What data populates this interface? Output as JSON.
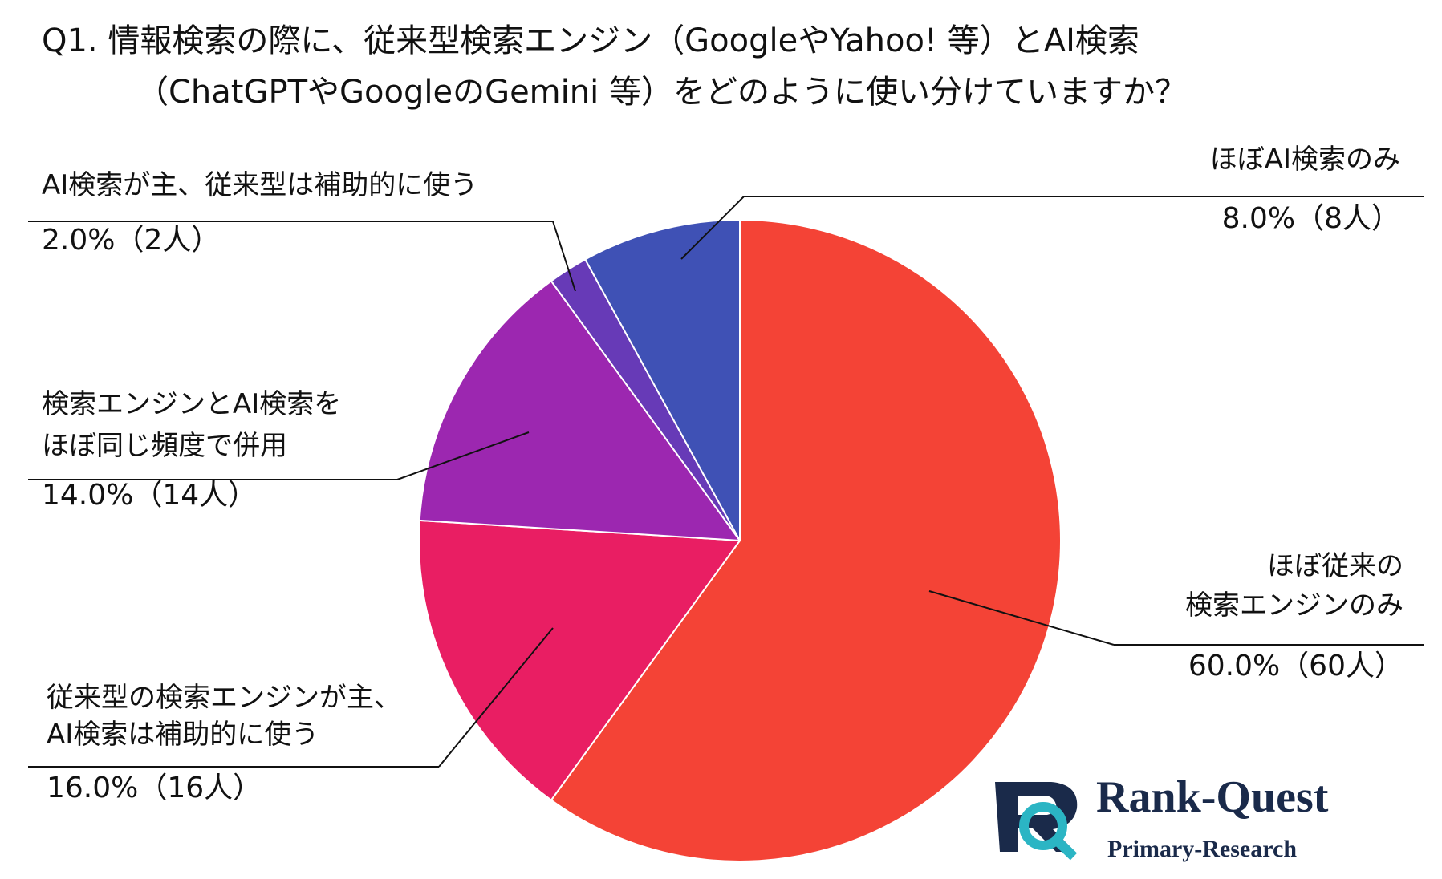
{
  "chart_data": {
    "type": "pie",
    "title": [
      "Q1. 情報検索の際に、従来型検索エンジン（GoogleやYahoo! 等）とAI検索",
      "（ChatGPTやGoogleのGemini 等）をどのように使い分けていますか？"
    ],
    "categories": [
      [
        "ほぼ従来の",
        "検索エンジンのみ"
      ],
      [
        "従来型の検索エンジンが主、",
        "AI検索は補助的に使う"
      ],
      [
        "検索エンジンとAI検索を",
        "ほぼ同じ頻度で併用"
      ],
      [
        "AI検索が主、従来型は補助的に使う"
      ],
      [
        "ほぼAI検索のみ"
      ]
    ],
    "values": [
      60,
      16,
      14,
      2,
      8
    ],
    "value_labels": [
      "60.0%（60人）",
      "16.0%（16人）",
      "14.0%（14人）",
      "2.0%（2人）",
      "8.0%（8人）"
    ],
    "colors": [
      "#f44336",
      "#e91e63",
      "#9c27b0",
      "#673ab7",
      "#3f51b5"
    ],
    "logo": [
      "Rank-Quest",
      "Primary-Research"
    ]
  }
}
